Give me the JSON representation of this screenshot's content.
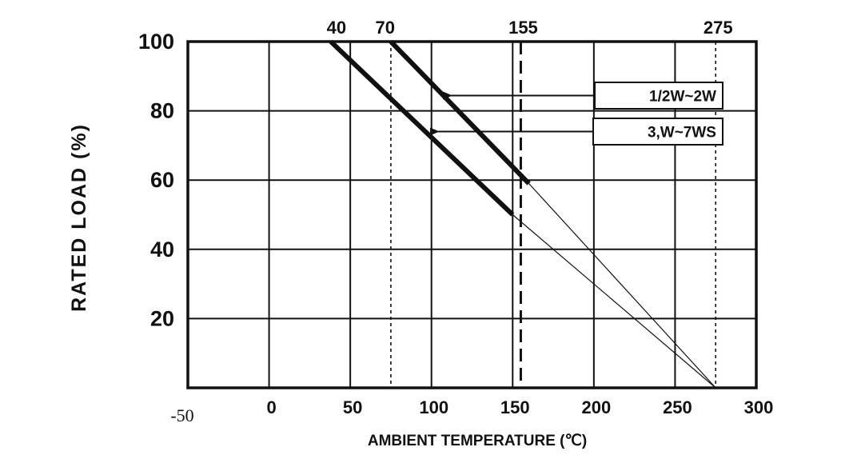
{
  "chart_data": {
    "type": "line",
    "xlabel": "AMBIENT TEMPERATURE (℃)",
    "ylabel": "RATED LOAD (%)",
    "xlim": [
      -50,
      300
    ],
    "ylim": [
      0,
      100
    ],
    "grid": true,
    "x_ticks": [
      {
        "value": -50,
        "label": "-50"
      },
      {
        "value": 0,
        "label": "0"
      },
      {
        "value": 50,
        "label": "50"
      },
      {
        "value": 100,
        "label": "100"
      },
      {
        "value": 150,
        "label": "150"
      },
      {
        "value": 200,
        "label": "200"
      },
      {
        "value": 250,
        "label": "250"
      },
      {
        "value": 300,
        "label": "300"
      }
    ],
    "y_ticks": [
      {
        "value": 20,
        "label": "20"
      },
      {
        "value": 40,
        "label": "40"
      },
      {
        "value": 60,
        "label": "60"
      },
      {
        "value": 80,
        "label": "80"
      },
      {
        "value": 100,
        "label": "100"
      }
    ],
    "top_markers": [
      {
        "value": 40,
        "label": "40"
      },
      {
        "value": 70,
        "label": "70"
      },
      {
        "value": 155,
        "label": "155"
      },
      {
        "value": 275,
        "label": "275"
      }
    ],
    "reference_lines": [
      {
        "x": 75,
        "style": "dotted"
      },
      {
        "x": 155,
        "style": "dashed"
      },
      {
        "x": 275,
        "style": "dotted"
      }
    ],
    "series": [
      {
        "name": "1/2W~2W",
        "points": [
          [
            75,
            100
          ],
          [
            160,
            59
          ]
        ],
        "extension": [
          [
            160,
            59
          ],
          [
            275,
            0
          ]
        ]
      },
      {
        "name": "3,W~7WS",
        "points": [
          [
            38,
            100
          ],
          [
            150,
            50
          ]
        ],
        "extension": [
          [
            150,
            50
          ],
          [
            275,
            0
          ]
        ]
      }
    ],
    "legend": [
      {
        "label": "1/2W~2W",
        "arrow_to": [
          112,
          85
        ]
      },
      {
        "label": "3,W~7WS",
        "arrow_to": [
          104,
          75
        ]
      }
    ]
  }
}
